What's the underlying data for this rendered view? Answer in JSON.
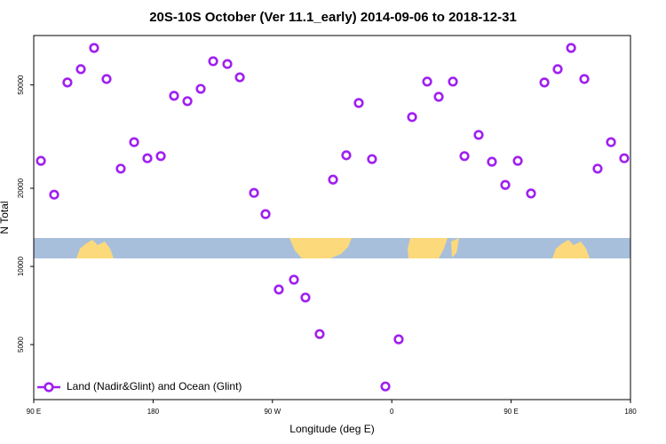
{
  "chart_data": {
    "type": "scatter",
    "title": "20S-10S October (Ver 11.1_early)   2014-09-06 to 2018-12-31",
    "xlabel": "Longitude (deg E)",
    "ylabel": "N Total",
    "yscale": "log",
    "xlim": [
      90,
      540
    ],
    "ylim": [
      3070,
      77500
    ],
    "xticks": [
      {
        "value": 90,
        "label": "90 E"
      },
      {
        "value": 180,
        "label": "180"
      },
      {
        "value": 270,
        "label": "90 W"
      },
      {
        "value": 360,
        "label": "0"
      },
      {
        "value": 450,
        "label": "90 E"
      },
      {
        "value": 540,
        "label": "180"
      }
    ],
    "yticks": [
      5000,
      10000,
      20000,
      50000
    ],
    "legend": "bottom left",
    "series": [
      {
        "name": "Land (Nadir&Glint) and Ocean (Glint)",
        "color": "#a020f0",
        "x": [
          95.4,
          105.4,
          115.4,
          125.5,
          135.5,
          144.9,
          155.6,
          165.7,
          175.7,
          185.8,
          195.8,
          205.9,
          215.9,
          225.3,
          236,
          245.4,
          256.1,
          264.8,
          274.8,
          286.2,
          294.9,
          305.6,
          315.7,
          325.7,
          335.1,
          345.1,
          355.2,
          365.2,
          375.3,
          386.7,
          395.4,
          406.1,
          414.8,
          425.5,
          435.5,
          445.6,
          455,
          465,
          475.1,
          485.1,
          495.2,
          505.2,
          515.2,
          525.3,
          535.3
        ],
        "values": [
          25500,
          18900,
          51100,
          57500,
          69400,
          52700,
          23800,
          30100,
          26100,
          26600,
          45400,
          43300,
          48300,
          61700,
          60200,
          53500,
          19200,
          15900,
          8150,
          8890,
          7590,
          5490,
          21600,
          26800,
          42600,
          25900,
          3450,
          5240,
          37600,
          51500,
          45000,
          51500,
          26600,
          32100,
          25300,
          20600,
          25500,
          19100,
          51100,
          57500,
          69400,
          52700,
          23800,
          30100,
          26100
        ]
      }
    ]
  }
}
